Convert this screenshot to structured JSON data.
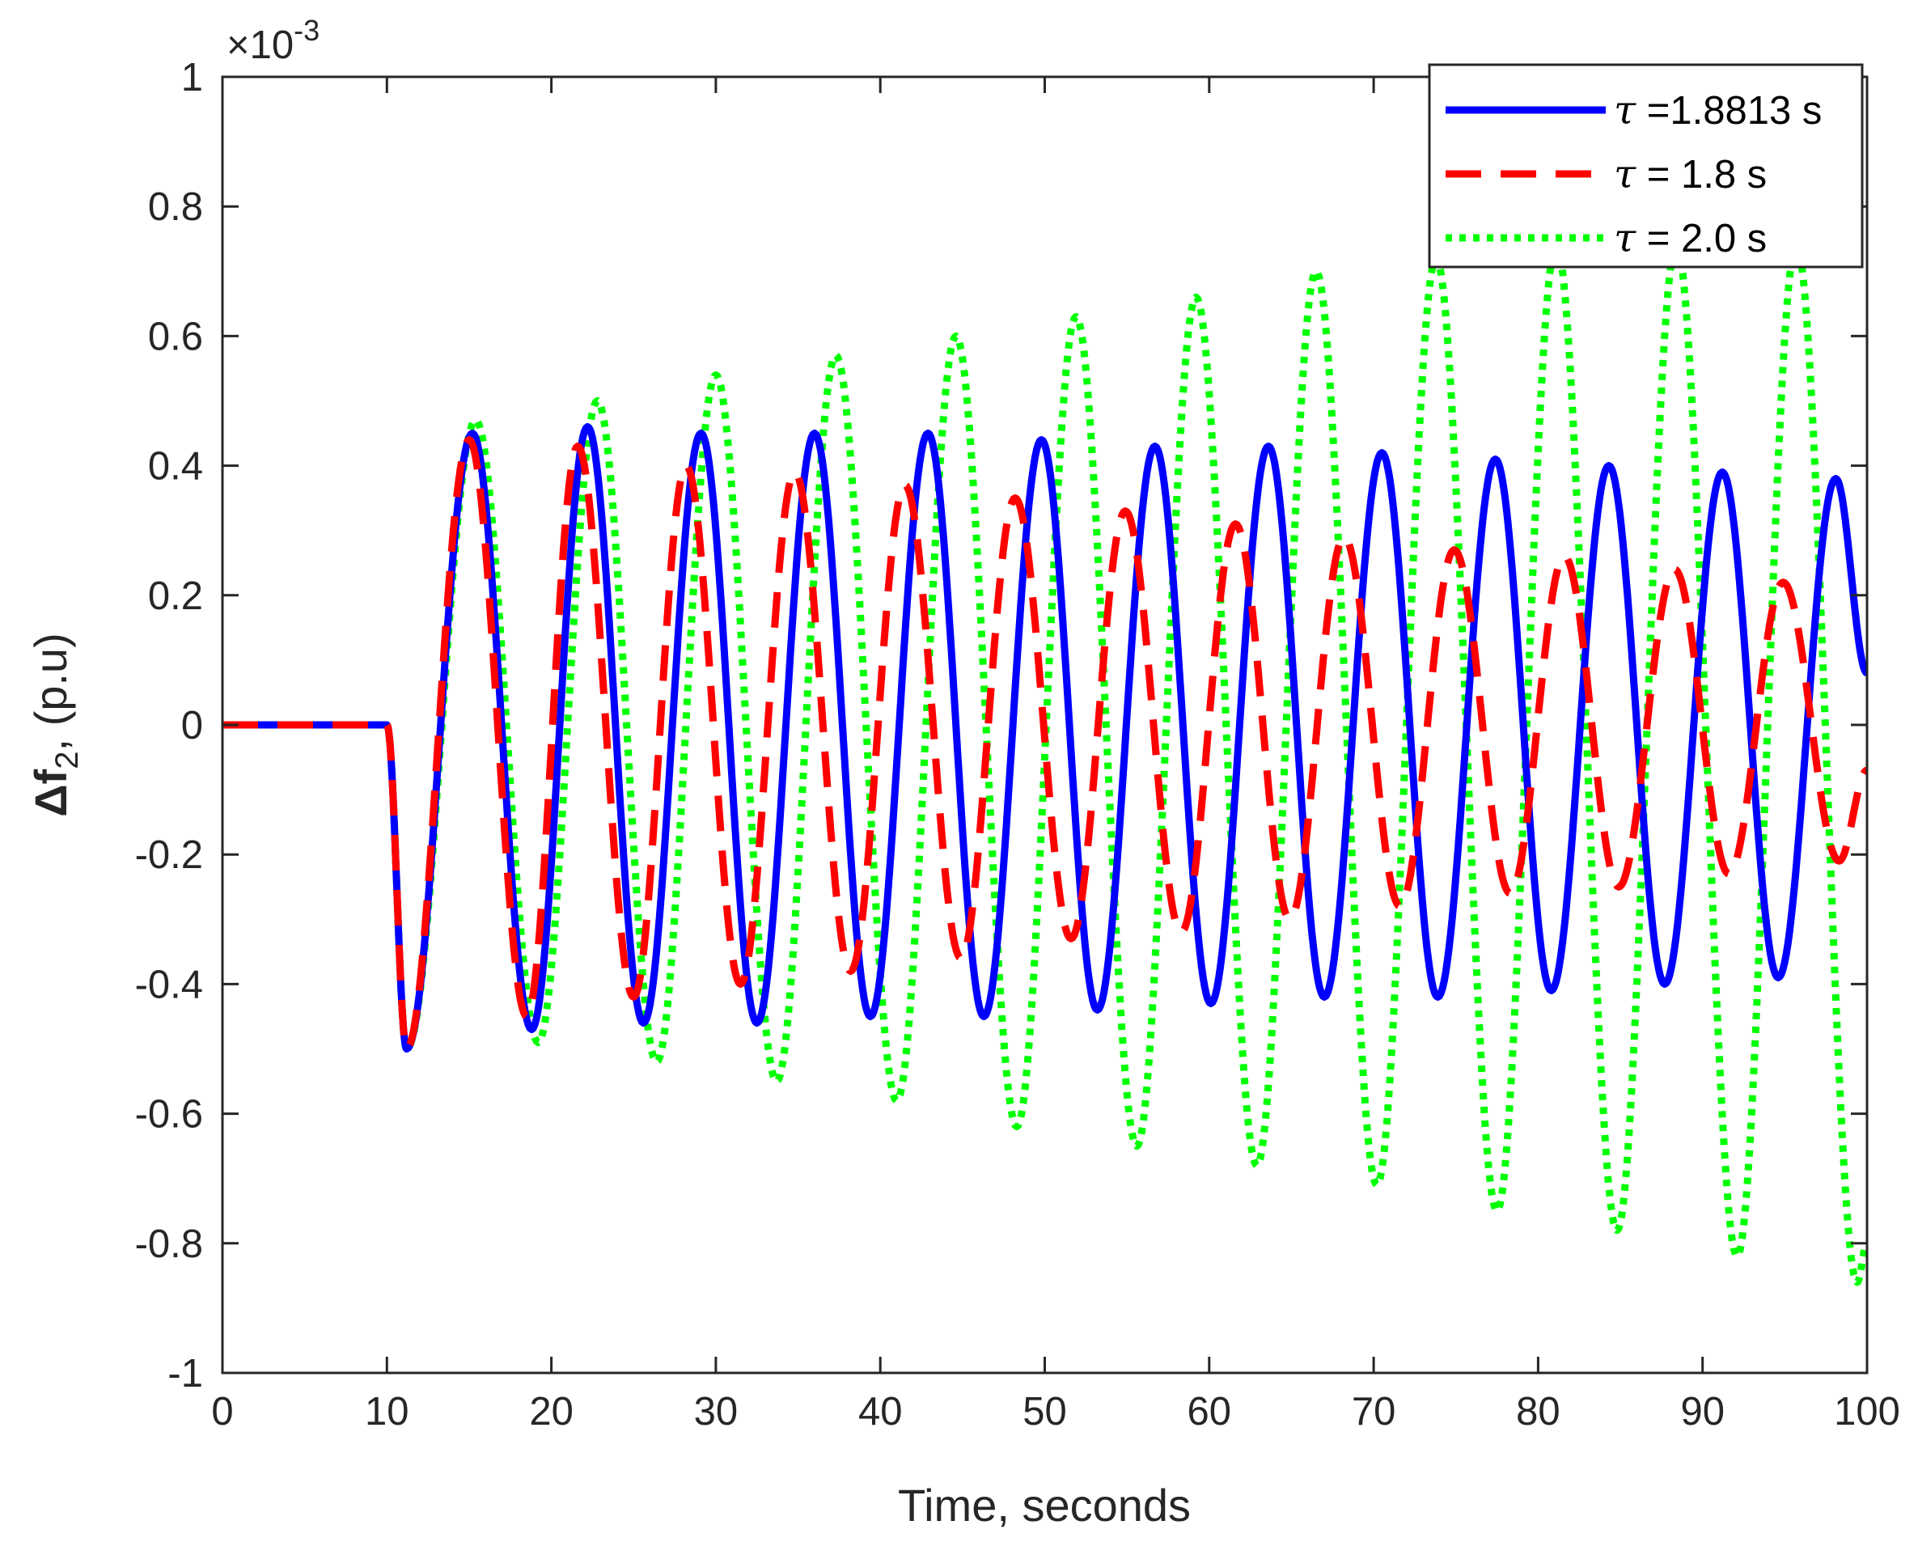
{
  "chart_data": {
    "type": "line",
    "title": "",
    "xlabel": "Time, seconds",
    "ylabel_main": "Δf",
    "ylabel_sub": "2",
    "ylabel_suffix": ", (p.u)",
    "xlim": [
      0,
      100
    ],
    "ylim": [
      -1,
      1
    ],
    "y_scale_prefix": "×10",
    "y_scale_exponent": "-3",
    "y_scale_factor": 0.001,
    "xticks": [
      0,
      10,
      20,
      30,
      40,
      50,
      60,
      70,
      80,
      90,
      100
    ],
    "xtick_labels": [
      "0",
      "10",
      "20",
      "30",
      "40",
      "50",
      "60",
      "70",
      "80",
      "90",
      "100"
    ],
    "yticks": [
      -1,
      -0.8,
      -0.6,
      -0.4,
      -0.2,
      0,
      0.2,
      0.4,
      0.6,
      0.8,
      1
    ],
    "ytick_labels": [
      "-1",
      "-0.8",
      "-0.6",
      "-0.4",
      "-0.2",
      "0",
      "0.2",
      "0.4",
      "0.6",
      "0.8",
      "1"
    ],
    "grid": false,
    "legend_position": "top-right",
    "series": [
      {
        "name": "τ =1.8813 s",
        "symbol": "τ",
        "label_rest": " =1.8813 s",
        "color": "#0000ff",
        "style": "solid",
        "x": [
          0,
          10,
          11.2,
          15.2,
          18.8,
          22.2,
          25.6,
          29.1,
          32.5,
          36.0,
          39.4,
          42.9,
          46.3,
          49.8,
          53.2,
          56.7,
          60.1,
          63.6,
          67.0,
          70.5,
          73.9,
          77.4,
          80.8,
          84.3,
          87.7,
          91.2,
          94.6,
          98.1,
          100
        ],
        "values": [
          0,
          0,
          -0.5,
          0.45,
          -0.47,
          0.46,
          -0.46,
          0.45,
          -0.46,
          0.45,
          -0.45,
          0.45,
          -0.45,
          0.44,
          -0.44,
          0.43,
          -0.43,
          0.43,
          -0.42,
          0.42,
          -0.42,
          0.41,
          -0.41,
          0.4,
          -0.4,
          0.39,
          -0.39,
          0.38,
          0.08
        ]
      },
      {
        "name": "τ = 1.8 s",
        "symbol": "τ",
        "label_rest": " = 1.8 s",
        "color": "#ff0000",
        "style": "dashed",
        "x": [
          0,
          10,
          11.2,
          15.0,
          18.5,
          21.6,
          25.0,
          28.2,
          31.5,
          34.8,
          38.2,
          41.5,
          44.9,
          48.2,
          51.6,
          54.9,
          58.3,
          61.6,
          64.9,
          68.2,
          71.6,
          74.9,
          78.3,
          81.6,
          84.9,
          88.3,
          91.6,
          94.9,
          98.3,
          100
        ],
        "values": [
          0,
          0,
          -0.5,
          0.44,
          -0.45,
          0.43,
          -0.42,
          0.4,
          -0.4,
          0.39,
          -0.38,
          0.37,
          -0.36,
          0.35,
          -0.33,
          0.33,
          -0.32,
          0.31,
          -0.3,
          0.29,
          -0.28,
          0.27,
          -0.26,
          0.26,
          -0.25,
          0.24,
          -0.23,
          0.22,
          -0.21,
          -0.07
        ]
      },
      {
        "name": "τ = 2.0 s",
        "symbol": "τ",
        "label_rest": " = 2.0 s",
        "color": "#00ff00",
        "style": "dotted",
        "x": [
          0,
          10,
          11.2,
          15.4,
          19.2,
          22.8,
          26.4,
          30.0,
          33.7,
          37.3,
          41.0,
          44.6,
          48.3,
          51.9,
          55.6,
          59.2,
          62.9,
          66.5,
          70.2,
          73.8,
          77.5,
          81.1,
          84.8,
          88.4,
          92.1,
          95.7,
          99.4,
          100
        ],
        "values": [
          0,
          0,
          -0.5,
          0.47,
          -0.49,
          0.5,
          -0.52,
          0.54,
          -0.55,
          0.57,
          -0.58,
          0.6,
          -0.62,
          0.63,
          -0.65,
          0.66,
          -0.68,
          0.7,
          -0.71,
          0.72,
          -0.75,
          0.74,
          -0.78,
          0.74,
          -0.82,
          0.74,
          -0.86,
          -0.8
        ]
      }
    ]
  }
}
